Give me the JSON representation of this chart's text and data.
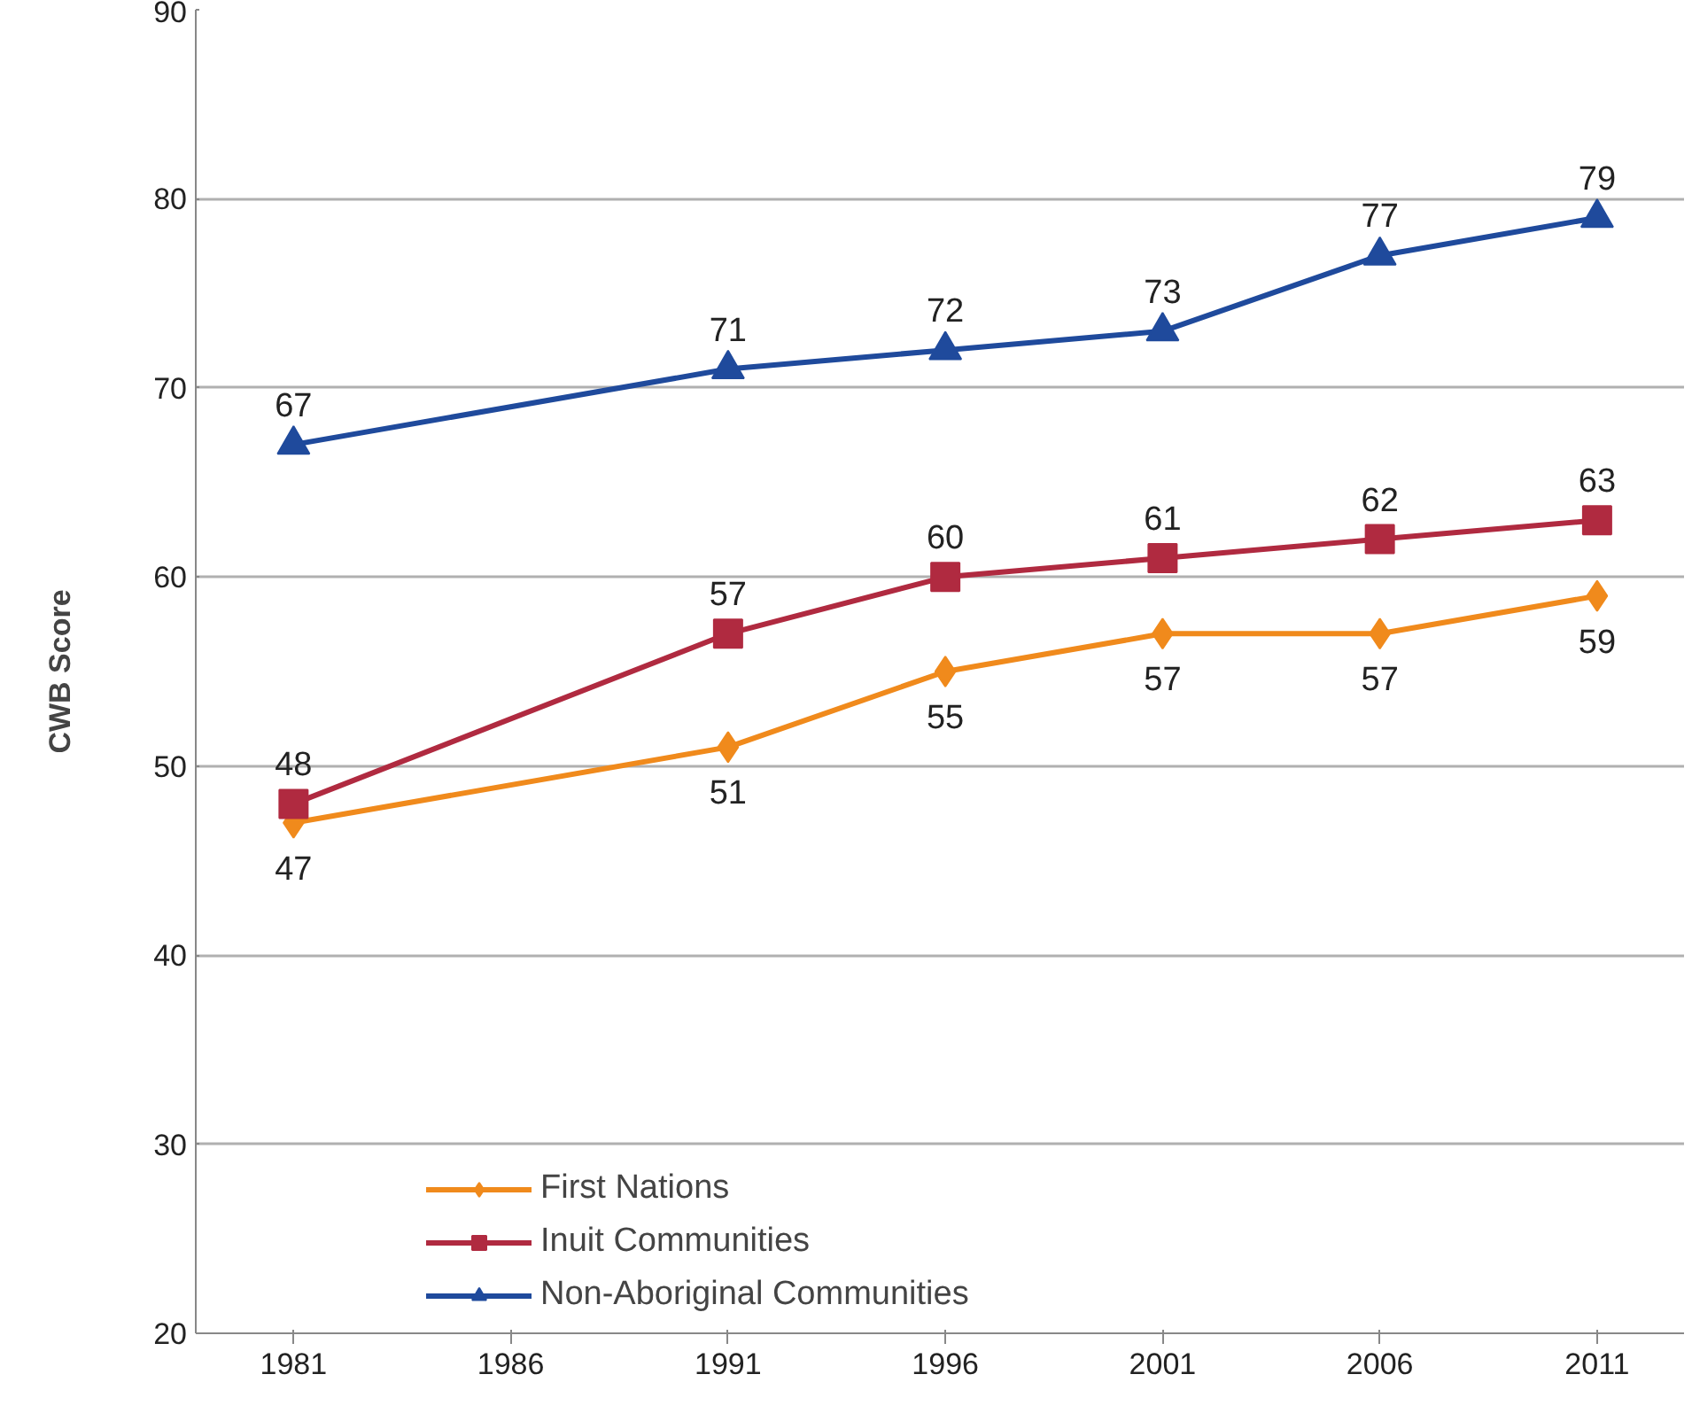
{
  "chart_data": {
    "type": "line",
    "ylabel": "CWB Score",
    "categories": [
      "1981",
      "1986",
      "1991",
      "1996",
      "2001",
      "2006",
      "2011"
    ],
    "ylim": [
      20,
      90
    ],
    "yticks": [
      20,
      30,
      40,
      50,
      60,
      70,
      80,
      90
    ],
    "grid": "y",
    "legend": "bottom",
    "data_labels": true,
    "series": [
      {
        "name": "First Nations",
        "color": "#f08a1c",
        "marker": "diamond",
        "values": [
          47,
          null,
          51,
          55,
          57,
          57,
          59
        ]
      },
      {
        "name": "Inuit Communities",
        "color": "#b02a40",
        "marker": "square",
        "values": [
          48,
          null,
          57,
          60,
          61,
          62,
          63
        ]
      },
      {
        "name": "Non-Aboriginal Communities",
        "color": "#1f4a9c",
        "marker": "triangle",
        "values": [
          67,
          null,
          71,
          72,
          73,
          77,
          79
        ]
      }
    ]
  }
}
